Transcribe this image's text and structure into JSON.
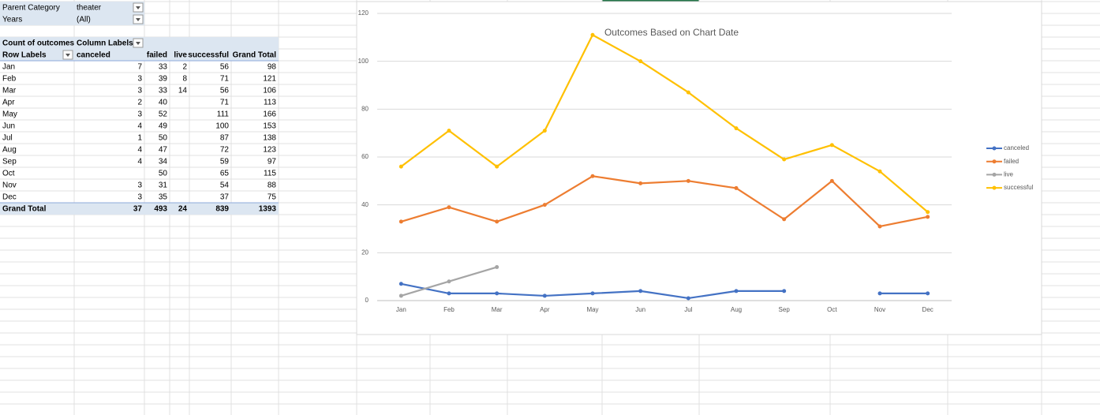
{
  "pivot": {
    "filters": [
      [
        "Parent Category",
        "theater"
      ],
      [
        "Years",
        "(All)"
      ]
    ],
    "header1": [
      "Count of outcomes",
      "Column Labels"
    ],
    "header2": [
      "Row Labels",
      "canceled",
      "failed",
      "live",
      "successful",
      "Grand Total"
    ],
    "rows": [
      [
        "Jan",
        7,
        33,
        2,
        56,
        98
      ],
      [
        "Feb",
        3,
        39,
        8,
        71,
        121
      ],
      [
        "Mar",
        3,
        33,
        14,
        56,
        106
      ],
      [
        "Apr",
        2,
        40,
        null,
        71,
        113
      ],
      [
        "May",
        3,
        52,
        null,
        111,
        166
      ],
      [
        "Jun",
        4,
        49,
        null,
        100,
        153
      ],
      [
        "Jul",
        1,
        50,
        null,
        87,
        138
      ],
      [
        "Aug",
        4,
        47,
        null,
        72,
        123
      ],
      [
        "Sep",
        4,
        34,
        null,
        59,
        97
      ],
      [
        "Oct",
        null,
        50,
        null,
        65,
        115
      ],
      [
        "Nov",
        3,
        31,
        null,
        54,
        88
      ],
      [
        "Dec",
        3,
        35,
        null,
        37,
        75
      ]
    ],
    "total": [
      "Grand Total",
      37,
      493,
      24,
      839,
      1393
    ]
  },
  "chart_data": {
    "type": "line",
    "title": "Outcomes Based on Chart Date",
    "categories": [
      "Jan",
      "Feb",
      "Mar",
      "Apr",
      "May",
      "Jun",
      "Jul",
      "Aug",
      "Sep",
      "Oct",
      "Nov",
      "Dec"
    ],
    "series": [
      {
        "name": "canceled",
        "color": "#4472c4",
        "values": [
          7,
          3,
          3,
          2,
          3,
          4,
          1,
          4,
          4,
          null,
          3,
          3
        ]
      },
      {
        "name": "failed",
        "color": "#ed7d31",
        "values": [
          33,
          39,
          33,
          40,
          52,
          49,
          50,
          47,
          34,
          50,
          31,
          35
        ]
      },
      {
        "name": "live",
        "color": "#a5a5a5",
        "values": [
          2,
          8,
          14,
          null,
          null,
          null,
          null,
          null,
          null,
          null,
          null,
          null
        ]
      },
      {
        "name": "successful",
        "color": "#ffc000",
        "values": [
          56,
          71,
          56,
          71,
          111,
          100,
          87,
          72,
          59,
          65,
          54,
          37
        ]
      }
    ],
    "ylim": [
      0,
      120
    ],
    "yticks": [
      0,
      20,
      40,
      60,
      80,
      100,
      120
    ],
    "grid": true,
    "legend": "right"
  }
}
